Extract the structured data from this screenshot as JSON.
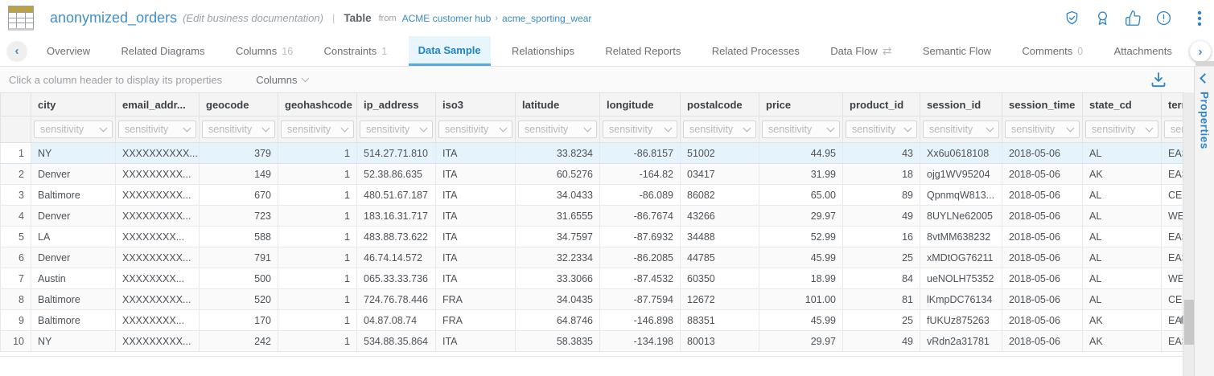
{
  "header": {
    "title": "anonymized_orders",
    "edit_hint": "(Edit business documentation)",
    "separator": "|",
    "type_label": "Table",
    "from_label": "from",
    "breadcrumb": {
      "hub": "ACME customer hub",
      "sep": "›",
      "schema": "acme_sporting_wear"
    },
    "action_icons": [
      "shield-check",
      "award-badge",
      "thumbs-up",
      "alert-circle",
      "more-options"
    ]
  },
  "tabs": {
    "items": [
      {
        "label": "Overview"
      },
      {
        "label": "Related Diagrams"
      },
      {
        "label": "Columns",
        "count": "16"
      },
      {
        "label": "Constraints",
        "count": "1"
      },
      {
        "label": "Data Sample",
        "active": true
      },
      {
        "label": "Relationships"
      },
      {
        "label": "Related Reports"
      },
      {
        "label": "Related Processes"
      },
      {
        "label": "Data Flow",
        "icon": "data-flow-swap",
        "icon_glyph": "⇄"
      },
      {
        "label": "Semantic Flow"
      },
      {
        "label": "Comments",
        "count": "0"
      },
      {
        "label": "Attachments"
      }
    ]
  },
  "toolbar": {
    "hint": "Click a column header to display its properties",
    "columns_dropdown": "Columns",
    "download_icon": "download-icon"
  },
  "properties_panel": {
    "label": "Properties"
  },
  "table": {
    "filter_placeholder": "sensitivity",
    "columns": [
      {
        "key": "rownum",
        "label": "",
        "width": 38,
        "align": "right"
      },
      {
        "key": "city",
        "label": "city",
        "width": 105,
        "align": "left"
      },
      {
        "key": "email_address",
        "label": "email_addr...",
        "width": 104,
        "align": "left"
      },
      {
        "key": "geocode",
        "label": "geocode",
        "width": 98,
        "align": "right"
      },
      {
        "key": "geohashcode",
        "label": "geohashcode",
        "width": 98,
        "align": "right"
      },
      {
        "key": "ip_address",
        "label": "ip_address",
        "width": 98,
        "align": "left"
      },
      {
        "key": "iso3",
        "label": "iso3",
        "width": 99,
        "align": "left"
      },
      {
        "key": "latitude",
        "label": "latitude",
        "width": 105,
        "align": "right"
      },
      {
        "key": "longitude",
        "label": "longitude",
        "width": 100,
        "align": "right"
      },
      {
        "key": "postalcode",
        "label": "postalcode",
        "width": 98,
        "align": "left"
      },
      {
        "key": "price",
        "label": "price",
        "width": 104,
        "align": "right"
      },
      {
        "key": "product_id",
        "label": "product_id",
        "width": 96,
        "align": "right"
      },
      {
        "key": "session_id",
        "label": "session_id",
        "width": 102,
        "align": "left"
      },
      {
        "key": "session_time",
        "label": "session_time",
        "width": 100,
        "align": "left"
      },
      {
        "key": "state_cd",
        "label": "state_cd",
        "width": 98,
        "align": "left"
      },
      {
        "key": "territory",
        "label": "terr",
        "width": 80,
        "align": "left"
      }
    ],
    "rows": [
      [
        "1",
        "NY",
        "XXXXXXXXXX...",
        "379",
        "1",
        "514.27.71.810",
        "ITA",
        "33.8234",
        "-86.8157",
        "51002",
        "44.95",
        "43",
        "Xx6u0618108",
        "2018-05-06",
        "AL",
        "EAST"
      ],
      [
        "2",
        "Denver",
        "XXXXXXXXX...",
        "149",
        "1",
        "52.38.86.635",
        "ITA",
        "60.5276",
        "-164.82",
        "03417",
        "31.99",
        "18",
        "ojg1WV95204",
        "2018-05-06",
        "AK",
        "EAST"
      ],
      [
        "3",
        "Baltimore",
        "XXXXXXXXX...",
        "670",
        "1",
        "480.51.67.187",
        "ITA",
        "34.0433",
        "-86.089",
        "86082",
        "65.00",
        "89",
        "QpnmqW813...",
        "2018-05-06",
        "AL",
        "CEN"
      ],
      [
        "4",
        "Denver",
        "XXXXXXXXX...",
        "723",
        "1",
        "183.16.31.717",
        "ITA",
        "31.6555",
        "-86.7674",
        "43266",
        "29.97",
        "49",
        "8UYLNe62005",
        "2018-05-06",
        "AL",
        "WES"
      ],
      [
        "5",
        "LA",
        "XXXXXXXX...",
        "588",
        "1",
        "483.88.73.622",
        "ITA",
        "34.7597",
        "-87.6932",
        "34488",
        "52.99",
        "16",
        "8vtMM638232",
        "2018-05-06",
        "AL",
        "EAST"
      ],
      [
        "6",
        "Denver",
        "XXXXXXXXX...",
        "791",
        "1",
        "46.74.14.572",
        "ITA",
        "32.2334",
        "-86.2085",
        "44785",
        "45.99",
        "25",
        "xMDtOG76211",
        "2018-05-06",
        "AL",
        "EAST"
      ],
      [
        "7",
        "Austin",
        "XXXXXXXX...",
        "500",
        "1",
        "065.33.33.736",
        "ITA",
        "33.3066",
        "-87.4532",
        "60350",
        "18.99",
        "84",
        "ueNOLH75352",
        "2018-05-06",
        "AL",
        "WES"
      ],
      [
        "8",
        "Baltimore",
        "XXXXXXXXX...",
        "520",
        "1",
        "724.76.78.446",
        "FRA",
        "34.0435",
        "-87.7594",
        "12672",
        "101.00",
        "81",
        "lKmpDC76134",
        "2018-05-06",
        "AL",
        "CEN"
      ],
      [
        "9",
        "Baltimore",
        "XXXXXXXX...",
        "170",
        "1",
        "04.87.08.74",
        "FRA",
        "64.8746",
        "-146.898",
        "88351",
        "45.99",
        "25",
        "fUKUz875263",
        "2018-05-06",
        "AK",
        "EAST"
      ],
      [
        "10",
        "NY",
        "XXXXXXXXX...",
        "242",
        "1",
        "534.88.35.864",
        "ITA",
        "58.3835",
        "-134.198",
        "80013",
        "29.97",
        "49",
        "vRdn2a31781",
        "2018-05-06",
        "AK",
        "EAST"
      ]
    ],
    "selected_row_index": 0
  },
  "colors": {
    "accent_blue": "#2e84c6",
    "title_blue": "#4290c9",
    "active_tab_bg": "#e9f5fc",
    "active_tab_underline": "#58a9dd",
    "selected_row_bg": "#e7f3fb",
    "table_icon_gold": "#bfa23a"
  }
}
